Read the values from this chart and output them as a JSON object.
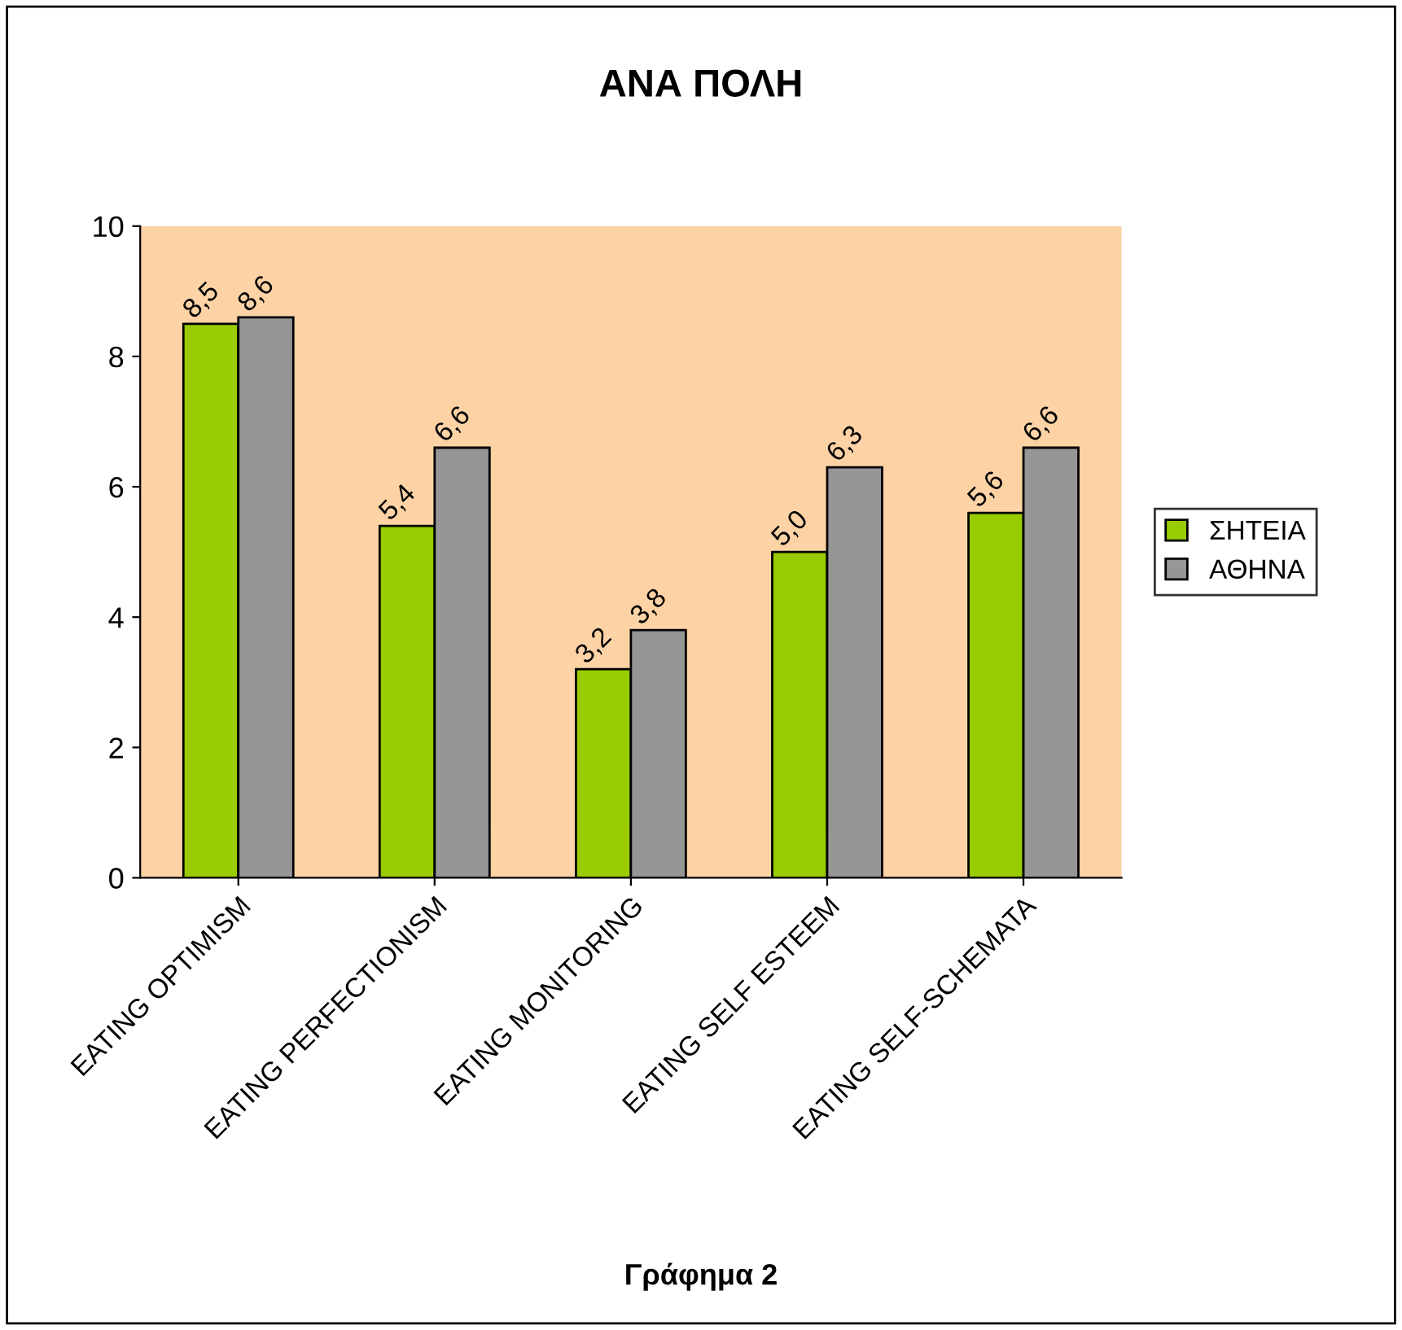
{
  "chart_data": {
    "type": "bar",
    "title": "ΑΝΑ ΠΟΛΗ",
    "categories": [
      "EATING OPTIMISM",
      "EATING PERFECTIONISM",
      "EATING MONITORING",
      "EATING SELF ESTEEM",
      "EATING SELF-SCHEMATA"
    ],
    "series": [
      {
        "name": "ΣΗΤΕΙΑ",
        "color": "#99cc00",
        "values": [
          8.5,
          5.4,
          3.2,
          5.0,
          5.6
        ],
        "value_labels": [
          "8,5",
          "5,4",
          "3,2",
          "5,0",
          "5,6"
        ]
      },
      {
        "name": "ΑΘΗΝΑ",
        "color": "#969696",
        "values": [
          8.6,
          6.6,
          3.8,
          6.3,
          6.6
        ],
        "value_labels": [
          "8,6",
          "6,6",
          "3,8",
          "6,3",
          "6,6"
        ]
      }
    ],
    "ylim": [
      0,
      10
    ],
    "yticks": [
      0,
      2,
      4,
      6,
      8,
      10
    ],
    "grid": false,
    "legend": "right",
    "annotations": [
      "Γράφημα 2"
    ]
  }
}
